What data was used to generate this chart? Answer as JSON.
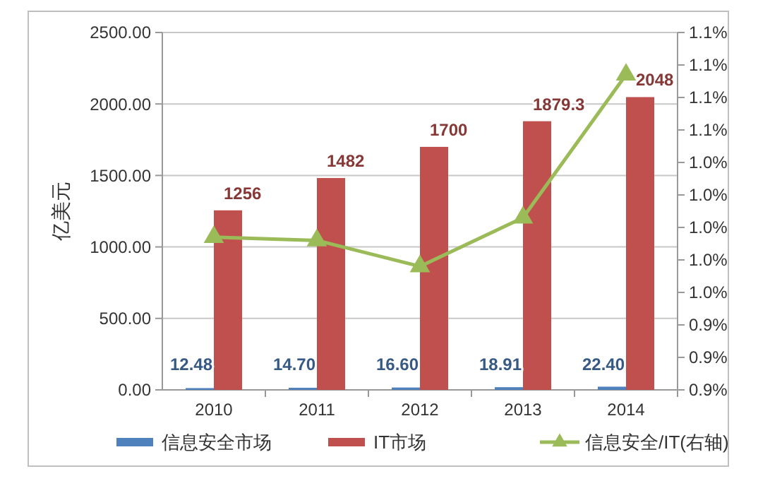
{
  "chart_data": {
    "type": "bar",
    "ylabel": "亿美元",
    "categories": [
      "2010",
      "2011",
      "2012",
      "2013",
      "2014"
    ],
    "series": [
      {
        "name": "信息安全市场",
        "color": "#4f81bd",
        "values": [
          12.48,
          14.7,
          16.6,
          18.91,
          22.4
        ],
        "value_labels": [
          "12.48",
          "14.70",
          "16.60",
          "18.91",
          "22.40"
        ]
      },
      {
        "name": "IT市场",
        "color": "#c0504d",
        "values": [
          1256,
          1482,
          1700,
          1879.3,
          2048
        ],
        "value_labels": [
          "1256",
          "1482",
          "1700",
          "1879.3",
          "2048"
        ]
      },
      {
        "name": "信息安全/IT(右轴)",
        "type": "line",
        "axis": "y2",
        "color": "#9bbb59",
        "marker": "triangle",
        "values": [
          0.994,
          0.992,
          0.976,
          1.006,
          1.094
        ]
      }
    ],
    "ylim": [
      0,
      2500
    ],
    "yticks": [
      {
        "value": 0,
        "label": "0.00"
      },
      {
        "value": 500,
        "label": "500.00"
      },
      {
        "value": 1000,
        "label": "1000.00"
      },
      {
        "value": 1500,
        "label": "1500.00"
      },
      {
        "value": 2000,
        "label": "2000.00"
      },
      {
        "value": 2500,
        "label": "2500.00"
      }
    ],
    "y2lim": [
      0.9,
      1.12
    ],
    "y2ticks": [
      {
        "value": 0.9,
        "label": "0.9%"
      },
      {
        "value": 0.92,
        "label": "0.9%"
      },
      {
        "value": 0.94,
        "label": "0.9%"
      },
      {
        "value": 0.96,
        "label": "1.0%"
      },
      {
        "value": 0.98,
        "label": "1.0%"
      },
      {
        "value": 1.0,
        "label": "1.0%"
      },
      {
        "value": 1.02,
        "label": "1.0%"
      },
      {
        "value": 1.04,
        "label": "1.0%"
      },
      {
        "value": 1.06,
        "label": "1.1%"
      },
      {
        "value": 1.08,
        "label": "1.1%"
      },
      {
        "value": 1.1,
        "label": "1.1%"
      },
      {
        "value": 1.12,
        "label": "1.1%"
      }
    ],
    "grid": "y",
    "legend": "bottom"
  }
}
